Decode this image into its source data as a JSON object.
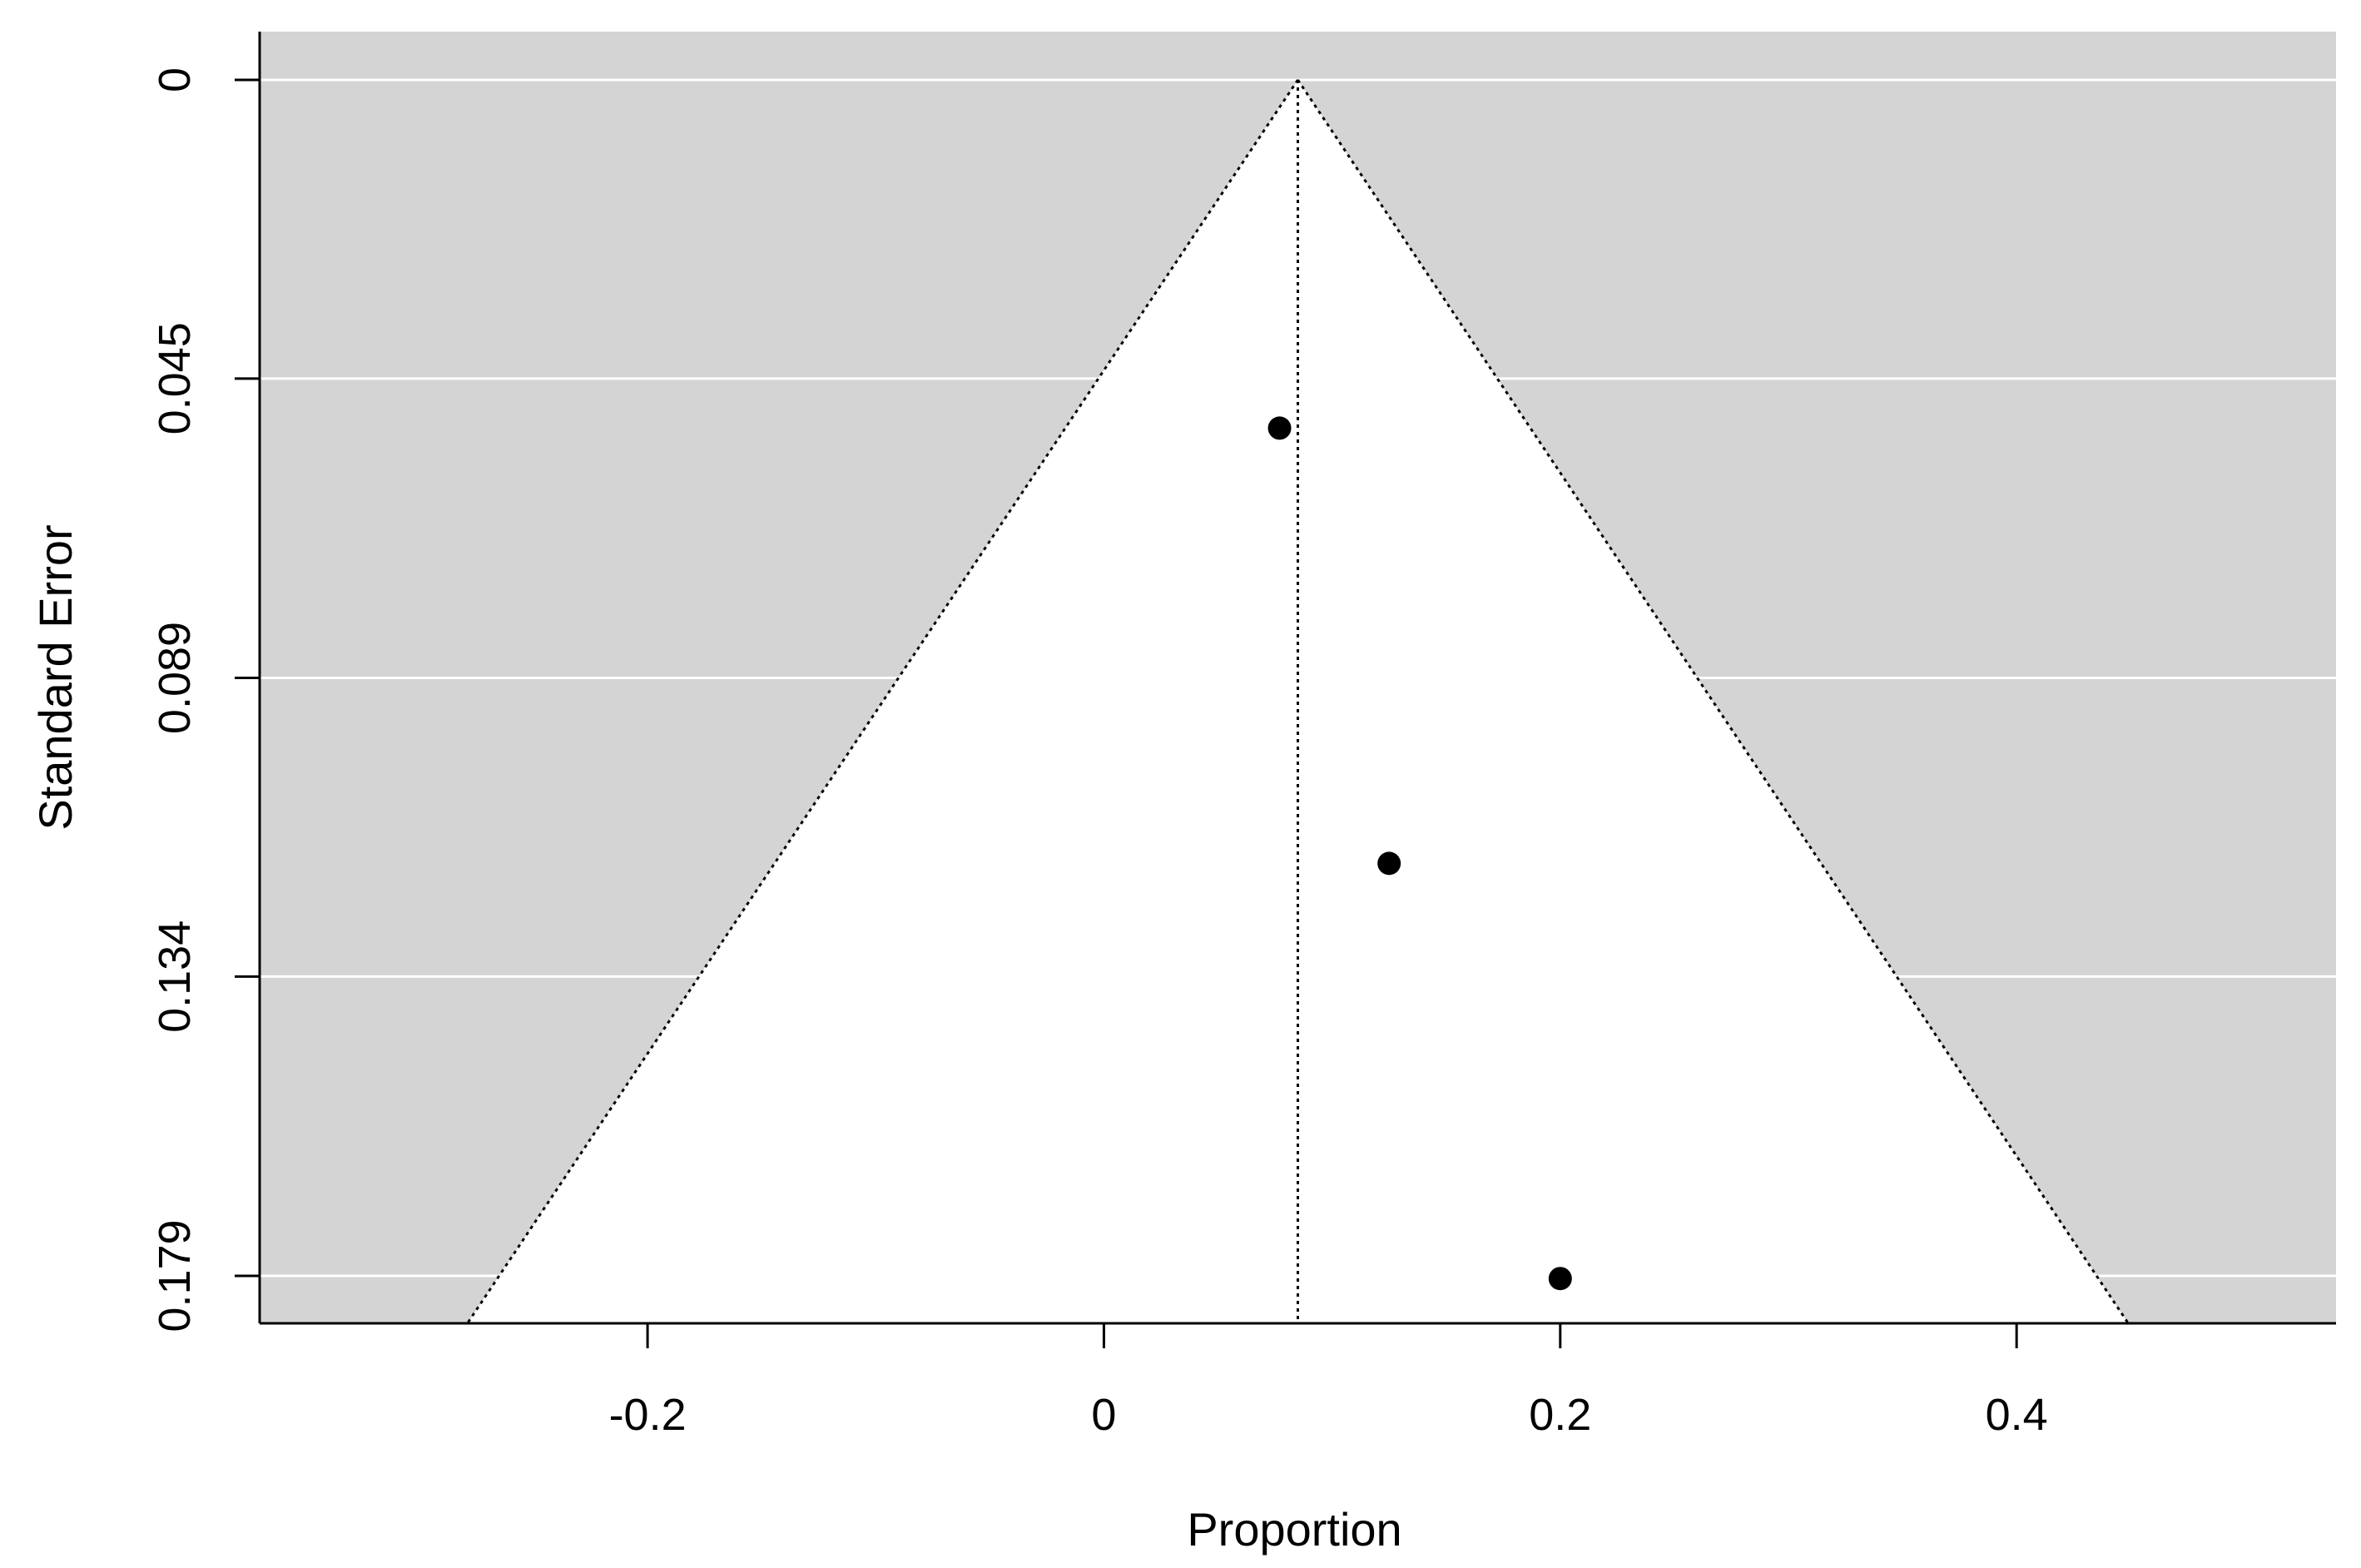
{
  "chart_data": {
    "type": "scatter",
    "subtype": "funnel",
    "xlabel": "Proportion",
    "ylabel": "Standard Error",
    "xlim": [
      -0.37,
      0.54
    ],
    "ylim": [
      0,
      0.186
    ],
    "y_reversed": true,
    "x_ticks": [
      -0.2,
      0,
      0.2,
      0.4
    ],
    "x_tick_labels": [
      "-0.2",
      "0",
      "0.2",
      "0.4"
    ],
    "y_ticks": [
      0,
      0.0446,
      0.0893,
      0.1339,
      0.1786
    ],
    "y_tick_labels": [
      "0",
      "0.045",
      "0.089",
      "0.134",
      "0.179"
    ],
    "grid": "horizontal",
    "center": 0.085,
    "funnel_z": 1.96,
    "points": [
      {
        "x": 0.077,
        "y": 0.052
      },
      {
        "x": 0.125,
        "y": 0.117
      },
      {
        "x": 0.2,
        "y": 0.179
      }
    ],
    "colors": {
      "background": "#d4d4d4",
      "funnel_fill": "#ffffff",
      "grid": "#ffffff",
      "points": "#000000",
      "lines": "#000000"
    }
  }
}
